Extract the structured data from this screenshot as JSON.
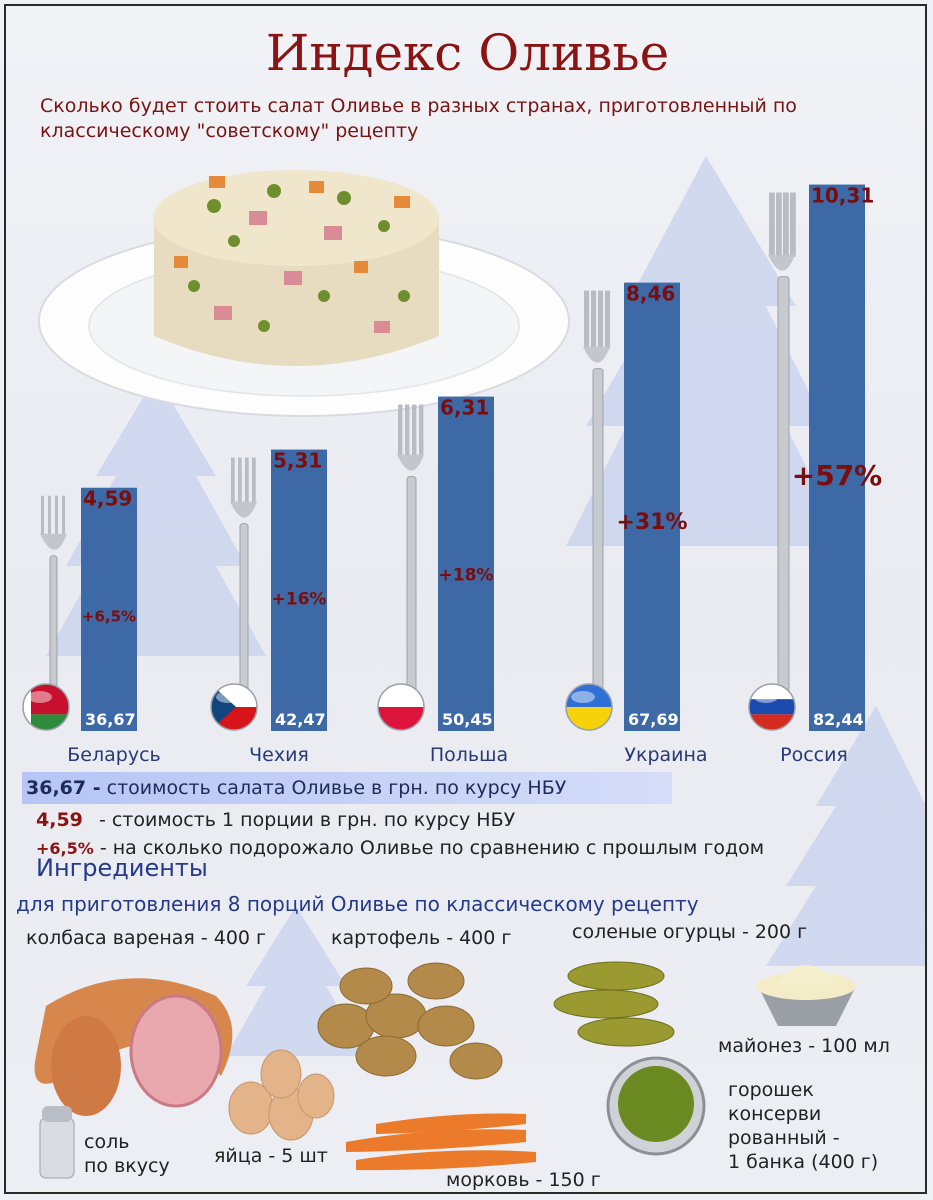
{
  "header": {
    "title": "Индекс Оливье",
    "subtitle": "Сколько будет стоить салат Оливье в разных странах, приготовленный по классическому \"советскому\" рецепту"
  },
  "chart_data": {
    "type": "bar",
    "categories": [
      "Беларусь",
      "Чехия",
      "Польша",
      "Украина",
      "Россия"
    ],
    "series": [
      {
        "values": [
          4.59,
          5.31,
          6.31,
          8.46,
          10.31
        ]
      }
    ],
    "value_labels": [
      "4,59",
      "5,31",
      "6,31",
      "8,46",
      "10,31"
    ],
    "salad_cost_labels": [
      "36,67",
      "42,47",
      "50,45",
      "67,69",
      "82,44"
    ],
    "salad_cost_values": [
      36.67,
      42.47,
      50.45,
      67.69,
      82.44
    ],
    "change_labels": [
      "+6,5%",
      "+16%",
      "+18%",
      "+31%",
      "+57%"
    ],
    "ylim": [
      0,
      11
    ],
    "grid": false,
    "bar_color": "#3d6aa7",
    "value_color": "#7a0d0d"
  },
  "legend": {
    "salad_key": "36,67 -",
    "salad_text": "стоимость салата Оливье в грн. по курсу НБУ",
    "portion_key": "4,59",
    "portion_text": "- стоимость 1 порции в грн. по курсу НБУ",
    "change_key": "+6,5%",
    "change_text": "- на сколько подорожало Оливье по сравнению с прошлым годом"
  },
  "ingredients": {
    "title": "Ингредиенты",
    "subtitle": "для приготовления 8 порций Оливье по классическому рецепту",
    "sausage": "колбаса вареная - 400 г",
    "potato": "картофель - 400 г",
    "pickles": "соленые огурцы - 200 г",
    "mayo": "майонез - 100 мл",
    "peas_1": "горошек",
    "peas_2": "консерви",
    "peas_3": "рованный -",
    "peas_4": "1 банка (400 г)",
    "salt_1": "соль",
    "salt_2": "по вкусу",
    "eggs": "яйца - 5 шт",
    "carrot": "морковь - 150 г"
  },
  "colors": {
    "title": "#8a1414",
    "ingredients_heading": "#243a8a",
    "legend_band": "#adbef5"
  }
}
